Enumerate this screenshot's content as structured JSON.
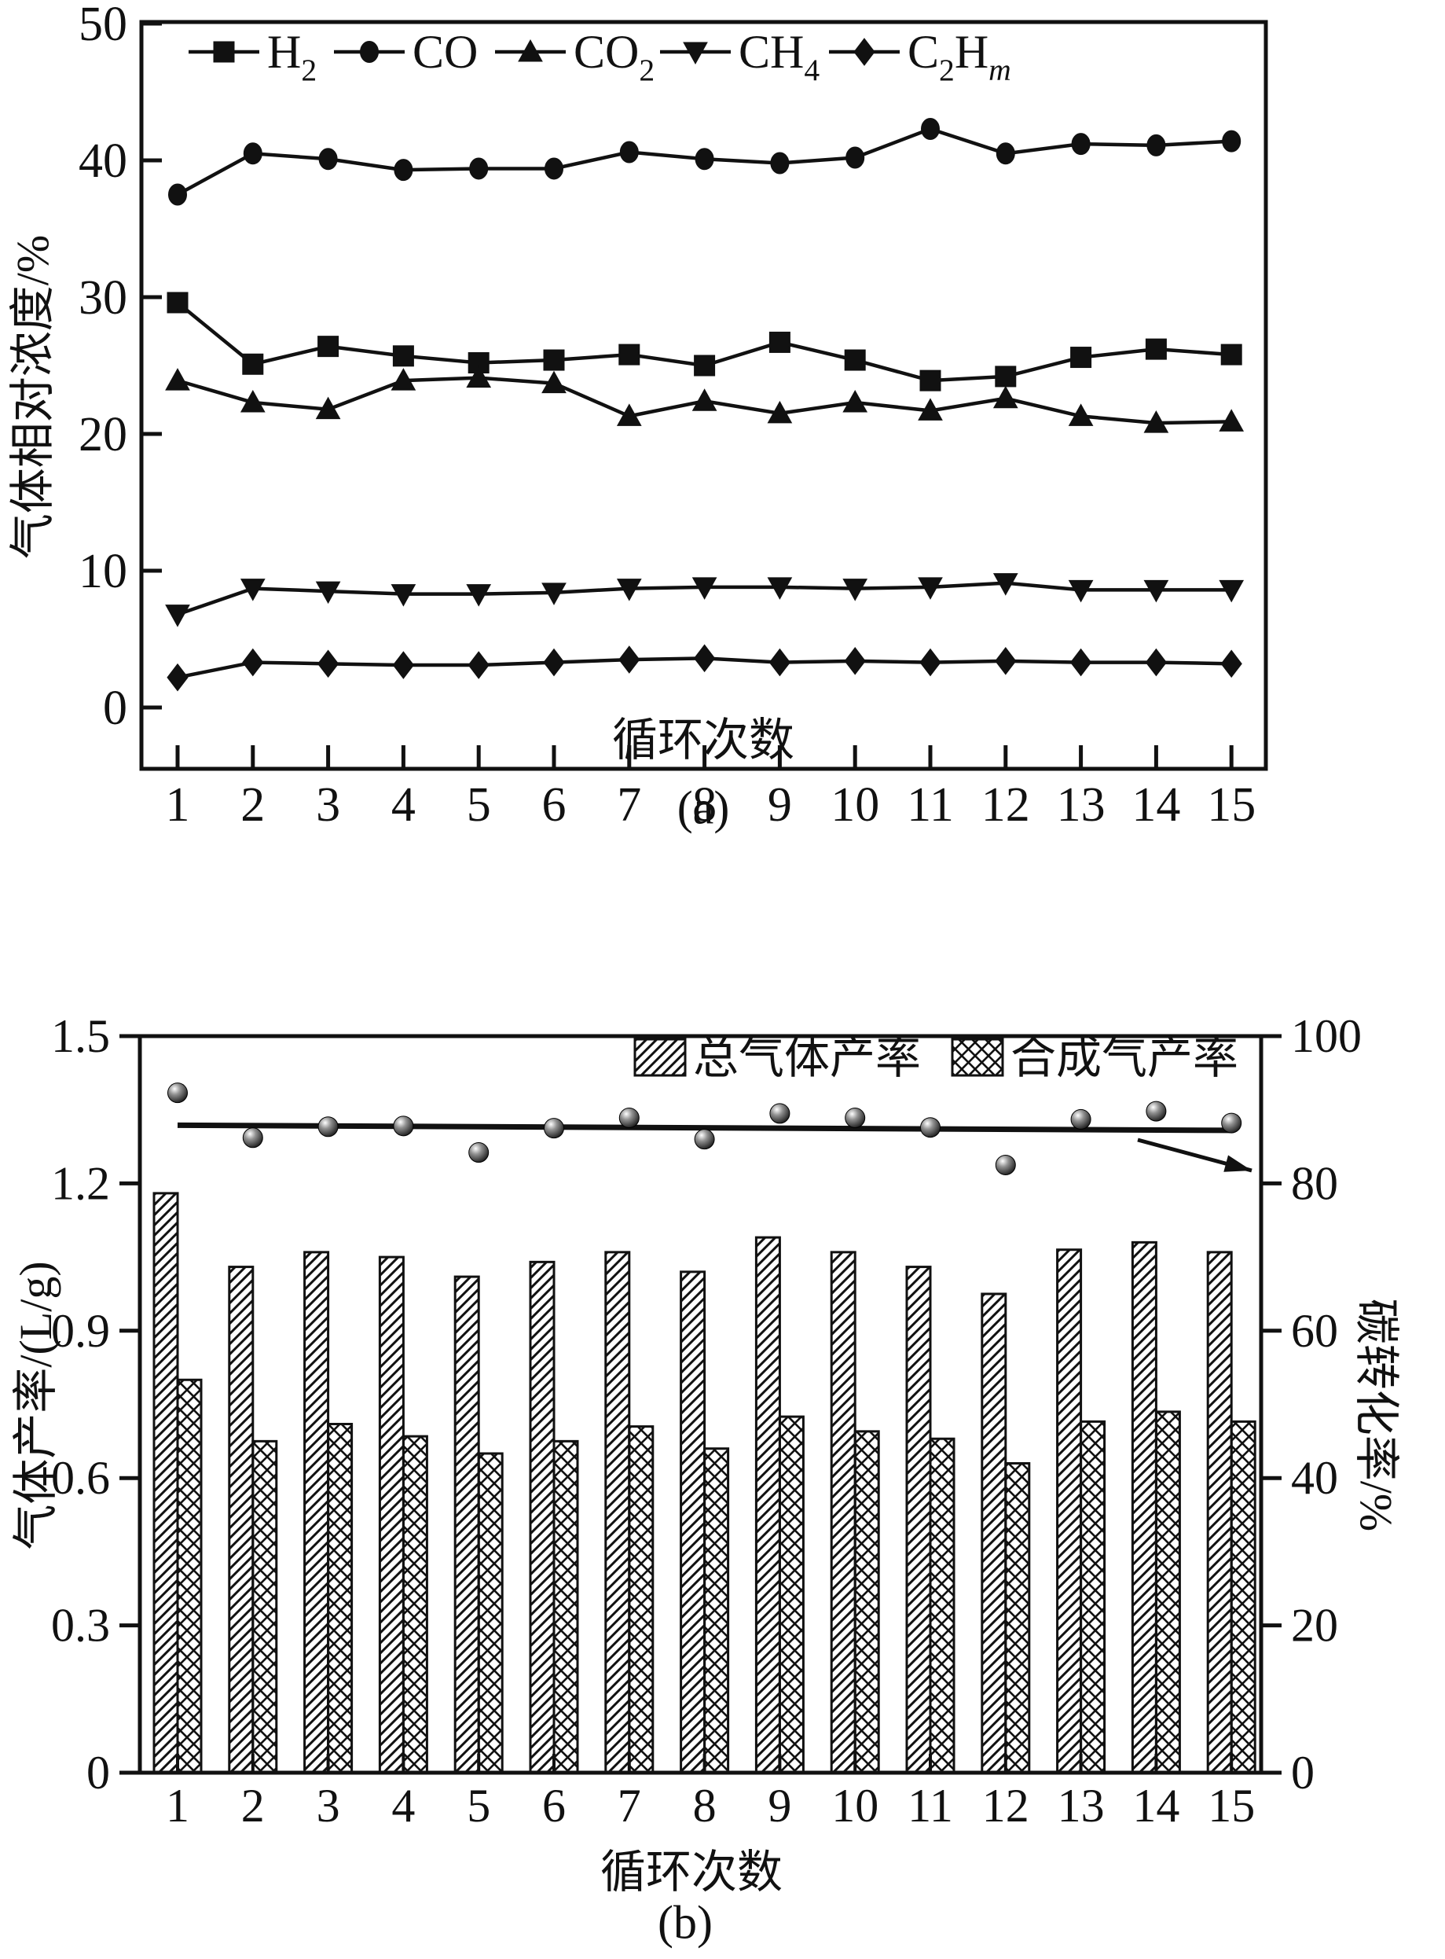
{
  "ink_color": "#111111",
  "panel_a": {
    "ylabel": "气体相对浓度/%",
    "xlabel": "循环次数",
    "caption": "(a)"
  },
  "panel_b": {
    "ylabel_left": "气体产率/(L/g)",
    "ylabel_right": "碳转化率/%",
    "xlabel": "循环次数",
    "caption": "(b)"
  },
  "chart_data": [
    {
      "type": "line",
      "panel": "a",
      "xlabel": "循环次数",
      "ylabel": "气体相对浓度/%",
      "x": [
        1,
        2,
        3,
        4,
        5,
        6,
        7,
        8,
        9,
        10,
        11,
        12,
        13,
        14,
        15
      ],
      "xtick_labels": [
        "1",
        "2",
        "3",
        "4",
        "5",
        "6",
        "7",
        "8",
        "9",
        "10",
        "11",
        "12",
        "13",
        "14",
        "15"
      ],
      "yticks": [
        0,
        10,
        20,
        30,
        40,
        50
      ],
      "ylim": [
        -4.5,
        50
      ],
      "grid": false,
      "legend_position": "top-inside",
      "series": [
        {
          "name": "H2",
          "name_segments": [
            [
              "H",
              ""
            ],
            [
              "2",
              "sub"
            ]
          ],
          "marker": "square",
          "values": [
            29.6,
            25.1,
            26.4,
            25.7,
            25.2,
            25.4,
            25.8,
            25.0,
            26.7,
            25.4,
            23.9,
            24.2,
            25.6,
            26.2,
            25.8
          ]
        },
        {
          "name": "CO",
          "name_segments": [
            [
              "C",
              ""
            ],
            [
              "O",
              ""
            ]
          ],
          "marker": "circle",
          "values": [
            37.5,
            40.5,
            40.1,
            39.3,
            39.4,
            39.4,
            40.6,
            40.1,
            39.8,
            40.2,
            42.3,
            40.5,
            41.2,
            41.1,
            41.4
          ]
        },
        {
          "name": "CO2",
          "name_segments": [
            [
              "C",
              ""
            ],
            [
              "O",
              ""
            ],
            [
              "2",
              "sub"
            ]
          ],
          "marker": "triangle-up",
          "values": [
            23.9,
            22.3,
            21.8,
            23.9,
            24.1,
            23.7,
            21.3,
            22.4,
            21.5,
            22.3,
            21.7,
            22.6,
            21.3,
            20.8,
            20.9
          ]
        },
        {
          "name": "CH4",
          "name_segments": [
            [
              "C",
              ""
            ],
            [
              "H",
              ""
            ],
            [
              "4",
              "sub"
            ]
          ],
          "marker": "triangle-down",
          "values": [
            6.8,
            8.7,
            8.5,
            8.3,
            8.3,
            8.4,
            8.7,
            8.8,
            8.8,
            8.7,
            8.8,
            9.1,
            8.6,
            8.6,
            8.6
          ]
        },
        {
          "name": "C2Hm",
          "name_segments": [
            [
              "C",
              ""
            ],
            [
              "2",
              "sub"
            ],
            [
              "H",
              ""
            ],
            [
              "m",
              "subitalic"
            ]
          ],
          "marker": "diamond",
          "values": [
            2.2,
            3.3,
            3.2,
            3.1,
            3.1,
            3.3,
            3.5,
            3.6,
            3.3,
            3.4,
            3.3,
            3.4,
            3.3,
            3.3,
            3.2
          ]
        }
      ]
    },
    {
      "type": "bar+scatter",
      "panel": "b",
      "xlabel": "循环次数",
      "ylabel_left": "气体产率/(L/g)",
      "ylabel_right": "碳转化率/%",
      "categories": [
        1,
        2,
        3,
        4,
        5,
        6,
        7,
        8,
        9,
        10,
        11,
        12,
        13,
        14,
        15
      ],
      "xtick_labels": [
        "1",
        "2",
        "3",
        "4",
        "5",
        "6",
        "7",
        "8",
        "9",
        "10",
        "11",
        "12",
        "13",
        "14",
        "15"
      ],
      "ytick_labels_left": [
        "0",
        "0.3",
        "0.6",
        "0.9",
        "1.2",
        "1.5"
      ],
      "yticks_left": [
        0,
        0.3,
        0.6,
        0.9,
        1.2,
        1.5
      ],
      "ytick_labels_right": [
        "0",
        "20",
        "40",
        "60",
        "80",
        "100"
      ],
      "yticks_right": [
        0,
        20,
        40,
        60,
        80,
        100
      ],
      "ylim_left": [
        0,
        1.5
      ],
      "ylim_right": [
        0,
        100
      ],
      "legend_position": "top-right-inside",
      "bar_series": [
        {
          "name": "总气体产率",
          "pattern": "diagonal-hatch",
          "axis": "left",
          "values": [
            1.18,
            1.03,
            1.06,
            1.05,
            1.01,
            1.04,
            1.06,
            1.02,
            1.09,
            1.06,
            1.03,
            0.975,
            1.065,
            1.08,
            1.06
          ]
        },
        {
          "name": "合成气产率",
          "pattern": "crosshatch",
          "axis": "left",
          "values": [
            0.8,
            0.675,
            0.71,
            0.685,
            0.65,
            0.675,
            0.705,
            0.66,
            0.725,
            0.695,
            0.68,
            0.63,
            0.715,
            0.735,
            0.715
          ]
        }
      ],
      "scatter_series": {
        "name": "碳转化率",
        "axis": "right",
        "marker": "sphere",
        "values": [
          92.3,
          86.2,
          87.7,
          87.8,
          84.2,
          87.5,
          88.9,
          86.0,
          89.5,
          88.9,
          87.6,
          82.5,
          88.7,
          89.8,
          88.2
        ]
      },
      "trend_line": {
        "x": [
          1,
          15
        ],
        "y_right": [
          87.9,
          87.2
        ]
      },
      "arrow_to_right_axis": {
        "from_xy": [
          1448,
          1450
        ],
        "to_xy": [
          1593,
          1489
        ]
      }
    }
  ]
}
